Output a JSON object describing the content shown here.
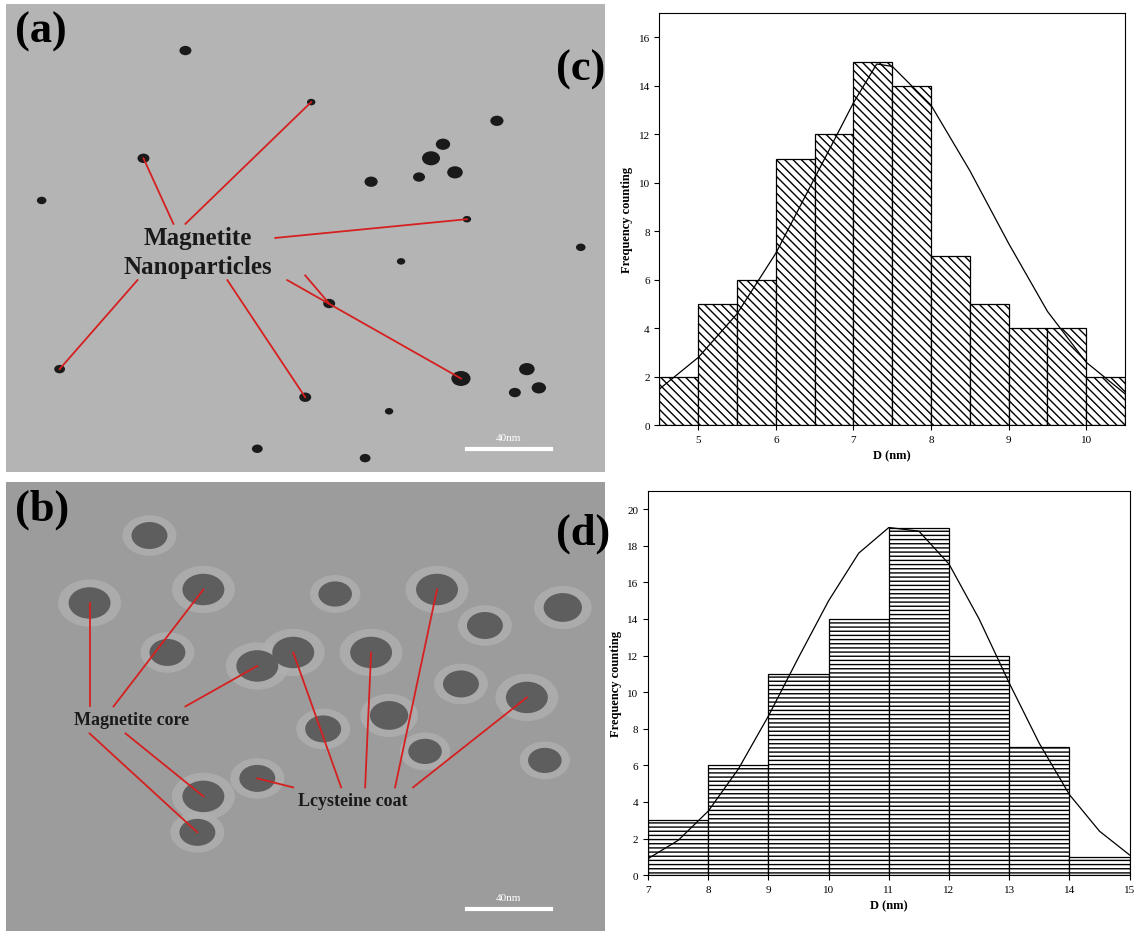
{
  "chart_data": [
    {
      "type": "image",
      "panel_label": "(a)",
      "annotations": [
        "Magnetite\nNanoparticles"
      ],
      "scale_bar": "40nm"
    },
    {
      "type": "image",
      "panel_label": "(b)",
      "annotations": [
        "Magnetite core",
        "Lcysteine coat"
      ],
      "scale_bar": "40nm"
    },
    {
      "type": "histogram",
      "panel_label": "(c)",
      "xlabel": "D (nm)",
      "ylabel": "Frequency counting",
      "bins": [
        4.5,
        5,
        5.5,
        6,
        6.5,
        7,
        7.5,
        8,
        8.5,
        9,
        9.5,
        10,
        10.5
      ],
      "counts": [
        2,
        5,
        6,
        11,
        12,
        15,
        14,
        7,
        5,
        4,
        4,
        2
      ],
      "color": "#ffffff",
      "fit": {
        "type": "line",
        "color": "#000000",
        "x": [
          4.5,
          5,
          5.5,
          6,
          6.5,
          7,
          7.3,
          7.5,
          8,
          8.5,
          9,
          9.5,
          10,
          10.5
        ],
        "values": [
          1.5,
          2.8,
          4.6,
          7.1,
          10.2,
          13.3,
          14.9,
          14.8,
          13.2,
          10.5,
          7.5,
          4.7,
          2.6,
          1.3
        ]
      },
      "xlim": [
        4.5,
        10.5
      ],
      "ylim": [
        0,
        17
      ],
      "xticks": [
        5,
        6,
        7,
        8,
        9,
        10
      ],
      "yticks": [
        0,
        2,
        4,
        6,
        8,
        10,
        12,
        14,
        16
      ]
    },
    {
      "type": "histogram",
      "panel_label": "(d)",
      "xlabel": "D (nm)",
      "ylabel": "Frequency counting",
      "bins": [
        7,
        8,
        9,
        10,
        11,
        12,
        13,
        14,
        15
      ],
      "counts": [
        3,
        6,
        11,
        14,
        19,
        12,
        7,
        1
      ],
      "color": "#ffffff",
      "fit": {
        "type": "line",
        "color": "#000000",
        "x": [
          7,
          7.5,
          8,
          8.5,
          9,
          9.5,
          10,
          10.5,
          11,
          11.5,
          12,
          12.5,
          13,
          13.5,
          14,
          14.5,
          15
        ],
        "values": [
          0.9,
          1.9,
          3.5,
          5.8,
          8.7,
          11.9,
          15.0,
          17.6,
          19.0,
          18.8,
          17.0,
          14.0,
          10.5,
          7.2,
          4.4,
          2.4,
          1.1
        ]
      },
      "xlim": [
        7,
        15
      ],
      "ylim": [
        0,
        21
      ],
      "xticks": [
        7,
        8,
        9,
        10,
        11,
        12,
        13,
        14,
        15
      ],
      "yticks": [
        0,
        2,
        4,
        6,
        8,
        10,
        12,
        14,
        16,
        18,
        20
      ]
    }
  ]
}
